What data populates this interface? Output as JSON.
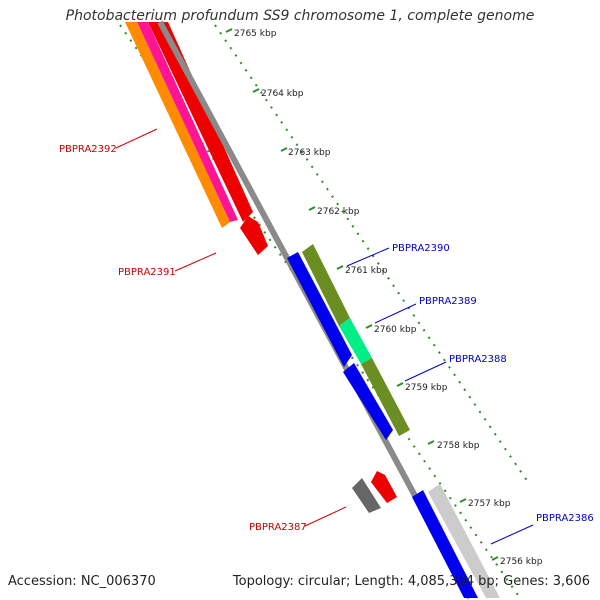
{
  "title": "Photobacterium profundum SS9 chromosome 1, complete genome",
  "accession": "Accession: NC_006370",
  "summary": "Topology: circular; Length: 4,085,304 bp; Genes: 3,606",
  "scale_labels": [
    "2765 kbp",
    "2764 kbp",
    "2763 kbp",
    "2762 kbp",
    "2761 kbp",
    "2760 kbp",
    "2759 kbp",
    "2758 kbp",
    "2757 kbp",
    "2756 kbp"
  ],
  "genes": [
    {
      "label": "PBPRA2392",
      "strand": "reverse",
      "color": "#cc0000"
    },
    {
      "label": "PBPRA2391",
      "strand": "reverse",
      "color": "#cc0000"
    },
    {
      "label": "PBPRA2390",
      "strand": "forward",
      "color": "#0000cc"
    },
    {
      "label": "PBPRA2389",
      "strand": "forward",
      "color": "#0000cc"
    },
    {
      "label": "PBPRA2388",
      "strand": "forward",
      "color": "#0000cc"
    },
    {
      "label": "PBPRA2387",
      "strand": "reverse",
      "color": "#cc0000"
    },
    {
      "label": "PBPRA2386",
      "strand": "forward",
      "color": "#0000cc"
    }
  ],
  "colors": {
    "backbone": "#8a8a8a",
    "dotted_ring": "#2e8b2e",
    "red_gene": "#ee0000",
    "blue_gene": "#0000ee",
    "olive_feature": "#6b8e23",
    "aqua_feature": "#00ee88",
    "orange_feature": "#ff8c00",
    "magenta_feature": "#ff1493",
    "gray_feature": "#666666",
    "light_gray_feature": "#cccccc"
  }
}
